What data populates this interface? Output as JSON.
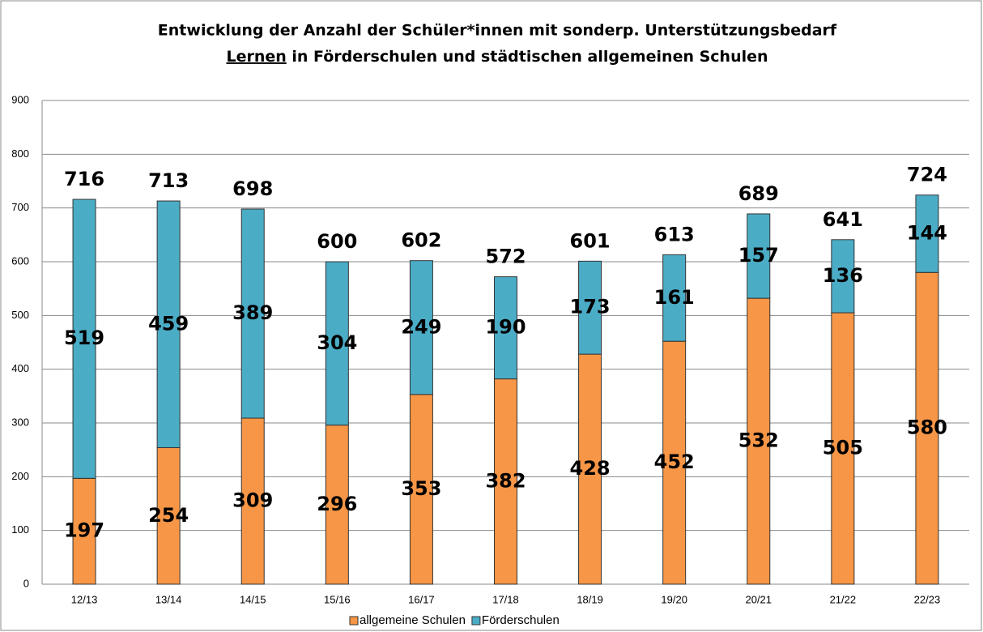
{
  "chart_data": {
    "type": "stacked_bar",
    "title": "Entwicklung der Anzahl der Schüler*innen mit sonderp. Unterstützungsbedarf",
    "title_line2": [
      "Lernen",
      " in Förderschulen und städtischen allgemeinen Schulen"
    ],
    "categories": [
      "12/13",
      "13/14",
      "14/15",
      "15/16",
      "16/17",
      "17/18",
      "18/19",
      "19/20",
      "20/21",
      "21/22",
      "22/23"
    ],
    "series": [
      {
        "name": "allgemeine Schulen",
        "color": "#f79646",
        "values": [
          197,
          254,
          309,
          296,
          353,
          382,
          428,
          452,
          532,
          505,
          580
        ]
      },
      {
        "name": "Förderschulen",
        "color": "#4bacc6",
        "values": [
          519,
          459,
          389,
          304,
          249,
          190,
          173,
          161,
          157,
          136,
          144
        ]
      }
    ],
    "totals": [
      716,
      713,
      698,
      600,
      602,
      572,
      601,
      613,
      689,
      641,
      724
    ],
    "ylim": [
      0,
      900
    ],
    "yticks": [
      0,
      100,
      200,
      300,
      400,
      500,
      600,
      700,
      800,
      900
    ],
    "grid": true,
    "legend": "bottom"
  }
}
